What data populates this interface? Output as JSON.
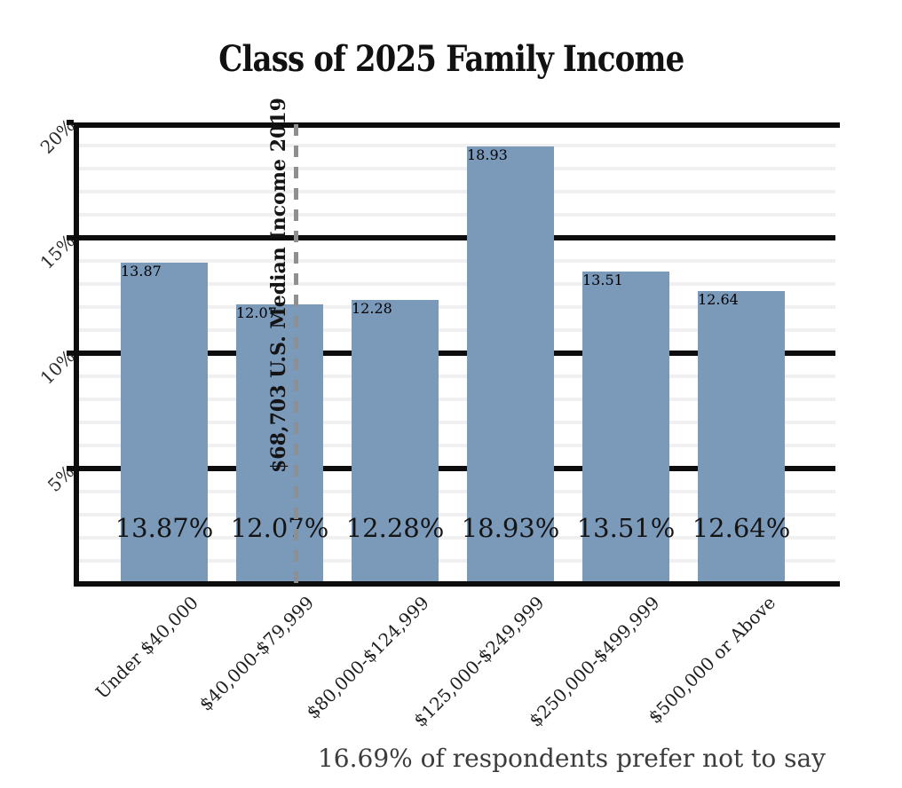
{
  "chart_data": {
    "type": "bar",
    "title": "Class of 2025 Family Income",
    "categories": [
      "Under $40,000",
      "$40,000-$79,999",
      "$80,000-$124,999",
      "$125,000-$249,999",
      "$250,000-$499,999",
      "$500,000 or Above"
    ],
    "values": [
      13.87,
      12.07,
      12.28,
      18.93,
      13.51,
      12.64
    ],
    "bar_labels": [
      "13.87%",
      "12.07%",
      "12.28%",
      "18.93%",
      "13.51%",
      "12.64%"
    ],
    "xlabel": "",
    "ylabel": "",
    "ylim": [
      0,
      20
    ],
    "yticks": [
      {
        "value": 5,
        "label": "5%"
      },
      {
        "value": 10,
        "label": "10%"
      },
      {
        "value": 15,
        "label": "15%"
      },
      {
        "value": 20,
        "label": "20%"
      }
    ],
    "minor_grid_interval_percent": 1,
    "grid": "horizontal; thick black major lines every 5%, light gray minor lines every 1%",
    "legend": "none",
    "tick_label_rotation_deg": 45,
    "reference_line": {
      "label": "$68,703 U.S. Median Income 2019",
      "orientation": "vertical",
      "style": "dashed",
      "location": "near right edge of the $40,000-$79,999 bar"
    },
    "footnote": "16.69% of respondents prefer not to say",
    "colors": {
      "bar": "#7b99b9",
      "major_grid": "#0d0d0d",
      "minor_grid": "#f0f0f0",
      "reference_line": "#8f8f8f",
      "title_text": "#111111",
      "label_text": "#141414",
      "tick_text": "#2a2a2a",
      "footnote_text": "#3c3c3c",
      "background": "#ffffff"
    }
  }
}
